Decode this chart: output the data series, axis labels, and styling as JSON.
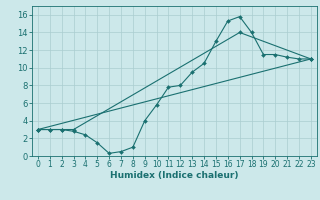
{
  "xlabel": "Humidex (Indice chaleur)",
  "xlim": [
    -0.5,
    23.5
  ],
  "ylim": [
    0,
    17
  ],
  "xticks": [
    0,
    1,
    2,
    3,
    4,
    5,
    6,
    7,
    8,
    9,
    10,
    11,
    12,
    13,
    14,
    15,
    16,
    17,
    18,
    19,
    20,
    21,
    22,
    23
  ],
  "yticks": [
    0,
    2,
    4,
    6,
    8,
    10,
    12,
    14,
    16
  ],
  "bg_color": "#cce8ea",
  "grid_color": "#aacdd0",
  "line_color": "#1a7070",
  "line1_x": [
    0,
    1,
    2,
    3,
    4,
    5,
    6,
    7,
    8,
    9,
    10,
    11,
    12,
    13,
    14,
    15,
    16,
    17,
    18,
    19,
    20,
    21,
    22,
    23
  ],
  "line1_y": [
    3.0,
    3.0,
    3.0,
    2.8,
    2.4,
    1.5,
    0.3,
    0.5,
    1.0,
    4.0,
    5.8,
    7.8,
    8.0,
    9.5,
    10.5,
    13.0,
    15.3,
    15.8,
    14.0,
    11.5,
    11.5,
    11.2,
    11.0,
    11.0
  ],
  "line2_x": [
    0,
    1,
    2,
    3,
    17,
    23
  ],
  "line2_y": [
    3.0,
    3.0,
    3.0,
    3.0,
    14.0,
    11.0
  ],
  "line3_x": [
    0,
    23
  ],
  "line3_y": [
    3.0,
    11.0
  ],
  "tick_fontsize": 5.5,
  "xlabel_fontsize": 6.5,
  "linewidth": 0.8,
  "markersize": 2.0
}
